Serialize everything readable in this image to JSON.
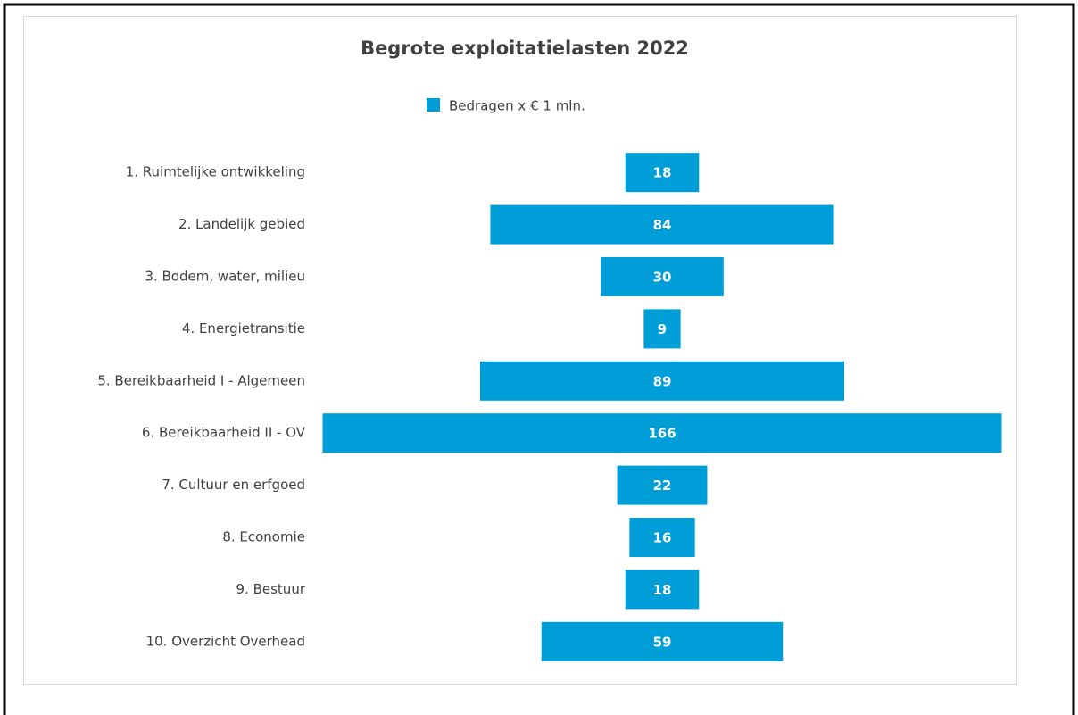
{
  "chart_data": {
    "type": "funnel",
    "title": "Begrote exploitatielasten 2022",
    "categories": [
      "1. Ruimtelijke ontwikkeling",
      "2. Landelijk gebied",
      "3. Bodem, water, milieu",
      "4. Energietransitie",
      "5. Bereikbaarheid I - Algemeen",
      "6. Bereikbaarheid II - OV",
      "7. Cultuur en erfgoed",
      "8. Economie",
      "9. Bestuur",
      "10. Overzicht Overhead"
    ],
    "series": [
      {
        "name": "Bedragen x € 1 mln.",
        "color": "#009ed8",
        "values": [
          18,
          84,
          30,
          9,
          89,
          166,
          22,
          16,
          18,
          59
        ]
      }
    ],
    "legend": "top"
  }
}
